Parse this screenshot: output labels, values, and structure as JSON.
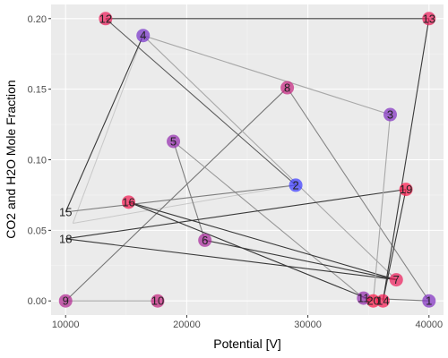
{
  "chart_data": {
    "type": "scatter",
    "xlabel": "Potential [V]",
    "ylabel": "CO2 and H2O Mole Fraction",
    "xlim": [
      8800,
      41200
    ],
    "ylim": [
      -0.01,
      0.21
    ],
    "x_ticks": [
      10000,
      20000,
      30000,
      40000
    ],
    "x_tick_labels": [
      "10000",
      "20000",
      "30000",
      "40000"
    ],
    "y_ticks": [
      0.0,
      0.05,
      0.1,
      0.15,
      0.2
    ],
    "y_tick_labels": [
      "0.00",
      "0.05",
      "0.10",
      "0.15",
      "0.20"
    ],
    "grid": true,
    "background": "#ebebeb",
    "point_color_low": "#3d3dff",
    "point_color_high": "#ff1a4a",
    "points": [
      {
        "label": "1",
        "x": 40000,
        "y": 0.0,
        "c": 0.35,
        "line": 0.55
      },
      {
        "label": "2",
        "x": 29000,
        "y": 0.082,
        "c": 0.0,
        "line": 0.5
      },
      {
        "label": "3",
        "x": 36800,
        "y": 0.132,
        "c": 0.35,
        "line": 0.75
      },
      {
        "label": "4",
        "x": 16400,
        "y": 0.188,
        "c": 0.3,
        "line": 0.75
      },
      {
        "label": "5",
        "x": 18900,
        "y": 0.113,
        "c": 0.45,
        "line": 0.65
      },
      {
        "label": "6",
        "x": 21500,
        "y": 0.043,
        "c": 0.55,
        "line": 0.5
      },
      {
        "label": "7",
        "x": 37300,
        "y": 0.015,
        "c": 0.9,
        "line": 0.1
      },
      {
        "label": "8",
        "x": 28300,
        "y": 0.151,
        "c": 0.7,
        "line": 0.45
      },
      {
        "label": "9",
        "x": 10000,
        "y": 0.0,
        "c": 0.6,
        "line": 0.75
      },
      {
        "label": "10",
        "x": 17600,
        "y": 0.0,
        "c": 0.7,
        "line": 0.75
      },
      {
        "label": "11",
        "x": 34600,
        "y": 0.002,
        "c": 0.45,
        "line": 0.5
      },
      {
        "label": "12",
        "x": 13300,
        "y": 0.2,
        "c": 0.9,
        "line": 0.3
      },
      {
        "label": "13",
        "x": 40000,
        "y": 0.2,
        "c": 0.9,
        "line": 0.15
      },
      {
        "label": "14",
        "x": 36200,
        "y": 0.0,
        "c": 0.95,
        "line": 0.1
      },
      {
        "label": "15",
        "x": 10000,
        "y": 0.063,
        "c": null,
        "line": 0.1
      },
      {
        "label": "16",
        "x": 15200,
        "y": 0.07,
        "c": 0.95,
        "line": 0.1
      },
      {
        "label": "18",
        "x": 10000,
        "y": 0.044,
        "c": null,
        "line": 0.1
      },
      {
        "label": "19",
        "x": 38100,
        "y": 0.079,
        "c": 0.98,
        "line": 0.1
      },
      {
        "label": "20",
        "x": 35400,
        "y": 0.0,
        "c": 1.0,
        "line": 0.1
      }
    ],
    "path_order": [
      "10",
      "9",
      "8",
      "1",
      "11",
      "5",
      "6",
      "7",
      "4",
      "15",
      "2",
      "12",
      "13",
      "14",
      "19",
      "18",
      "7",
      "16",
      "20",
      "3",
      "4"
    ],
    "faint_path": [
      {
        "from": "4",
        "to": [
          10600,
          0.055
        ]
      },
      {
        "from": [
          10600,
          0.055
        ],
        "to": "2"
      }
    ]
  }
}
